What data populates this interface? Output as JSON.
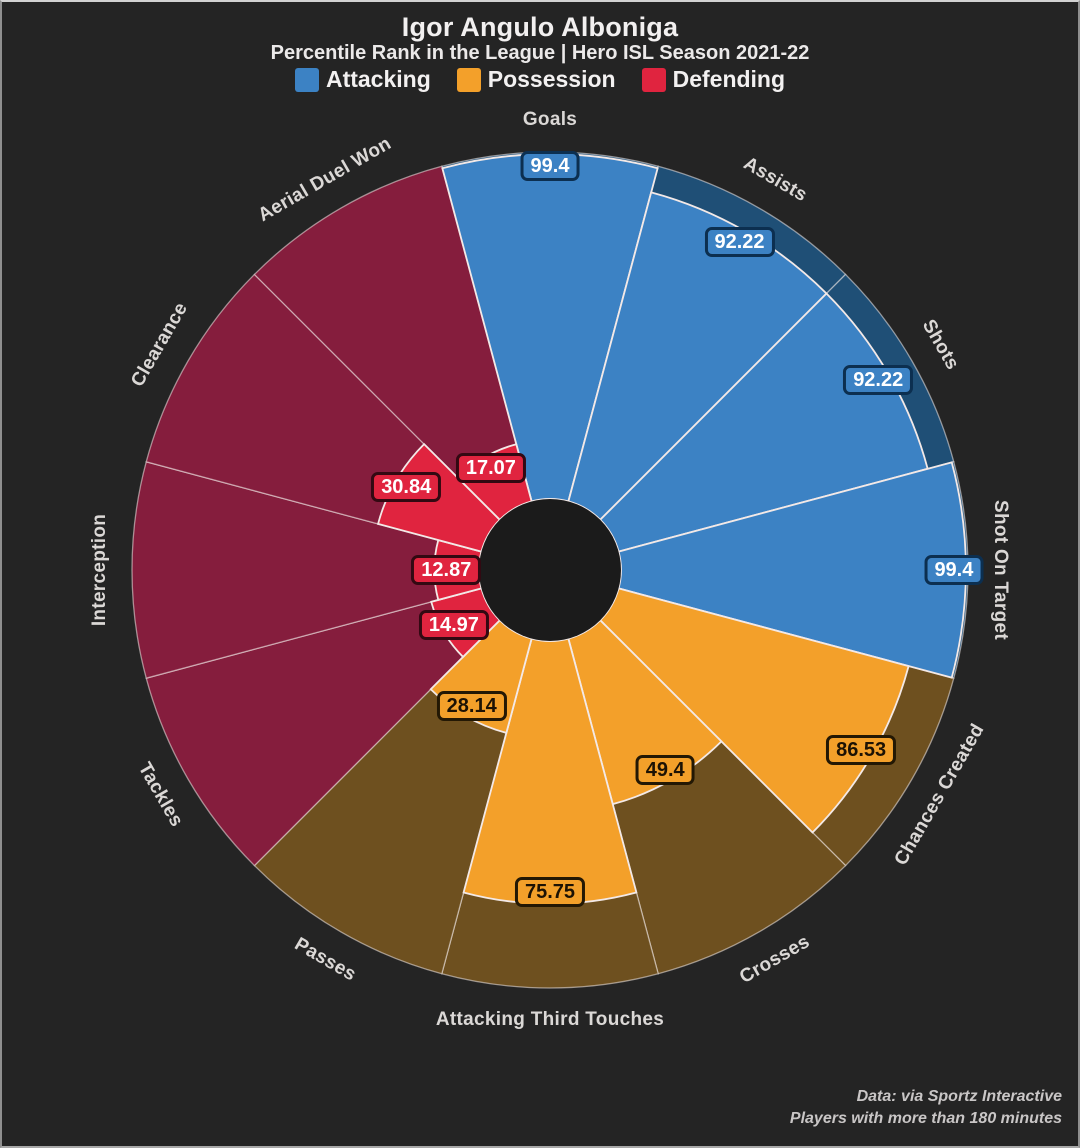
{
  "chart_data": {
    "type": "radial_pizza_bar",
    "title": "Igor Angulo Alboniga",
    "subtitle": "Percentile Rank in the League | Hero ISL Season 2021-22",
    "scale_min": 0,
    "scale_max": 100,
    "legend_position": "top",
    "background": "#242424",
    "hole_color": "#1b1b1b",
    "divider_color": "#f3e9e7",
    "categories": [
      {
        "name": "Attacking",
        "color": "#3c82c4",
        "track_color": "#1f4f76",
        "badge_text": "#ffffff",
        "badge_border": "#0c2f50"
      },
      {
        "name": "Possession",
        "color": "#f3a02a",
        "track_color": "#6e501f",
        "badge_text": "#1c1204",
        "badge_border": "#231804"
      },
      {
        "name": "Defending",
        "color": "#e0243f",
        "track_color": "#851d3d",
        "badge_text": "#ffffff",
        "badge_border": "#330912"
      }
    ],
    "slices": [
      {
        "label": "Goals",
        "value": 99.4,
        "category": "Attacking"
      },
      {
        "label": "Assists",
        "value": 92.22,
        "category": "Attacking"
      },
      {
        "label": "Shots",
        "value": 92.22,
        "category": "Attacking"
      },
      {
        "label": "Shot On Target",
        "value": 99.4,
        "category": "Attacking"
      },
      {
        "label": "Chances Created",
        "value": 86.53,
        "category": "Possession"
      },
      {
        "label": "Crosses",
        "value": 49.4,
        "category": "Possession"
      },
      {
        "label": "Attacking Third Touches",
        "value": 75.75,
        "category": "Possession"
      },
      {
        "label": "Passes",
        "value": 28.14,
        "category": "Possession"
      },
      {
        "label": "Tackles",
        "value": 14.97,
        "category": "Defending"
      },
      {
        "label": "Interception",
        "value": 12.87,
        "category": "Defending"
      },
      {
        "label": "Clearance",
        "value": 30.84,
        "category": "Defending"
      },
      {
        "label": "Aerial Duel Won",
        "value": 17.07,
        "category": "Defending"
      }
    ]
  },
  "footer": {
    "line1": "Data: via Sportz Interactive",
    "line2": "Players with more than 180 minutes"
  }
}
